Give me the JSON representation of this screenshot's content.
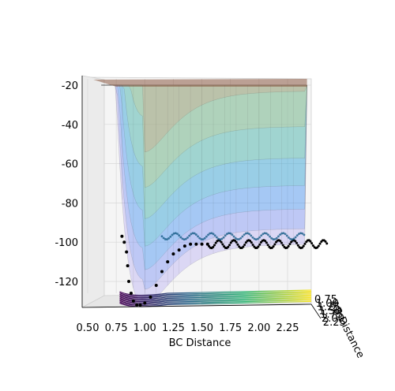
{
  "chart_data": {
    "type": "surface3d",
    "title": "",
    "xlabel": "BC Distance",
    "ylabel": "AB Distance",
    "zlabel": "",
    "x_ticks": [
      "0.50",
      "0.75",
      "1.00",
      "1.25",
      "1.50",
      "1.75",
      "2.00",
      "2.25"
    ],
    "y_ticks": [
      "0.75",
      "1.00",
      "1.25",
      "1.50",
      "1.75",
      "2.00",
      "2.25"
    ],
    "z_ticks": [
      "-20",
      "-40",
      "-60",
      "-80",
      "-100",
      "-120"
    ],
    "xlim": [
      0.5,
      2.4
    ],
    "zlim": [
      -135,
      -18
    ],
    "view": "side view along AB axis",
    "surface": {
      "colormap": "jet",
      "alpha": 0.35,
      "description_values": {
        "well_minimum_bc": 1.0,
        "well_minimum_energy": -132,
        "asymptote_energy": -101,
        "plateau_energy": -20
      }
    },
    "contour_colormap": "viridis",
    "trajectory": {
      "color": "#000000",
      "marker": "dot",
      "points_bc": [
        0.8,
        0.82,
        0.84,
        0.85,
        0.86,
        0.88,
        0.9,
        0.93,
        0.96,
        1.0,
        1.05,
        1.1,
        1.15,
        1.2,
        1.25,
        1.3,
        1.35,
        1.4,
        1.45,
        1.5,
        1.55
      ],
      "points_energy": [
        -97,
        -100,
        -105,
        -112,
        -120,
        -126,
        -130,
        -132,
        -132,
        -131,
        -128,
        -122,
        -115,
        -110,
        -106,
        -104,
        -102,
        -101,
        -101,
        -101,
        -101
      ],
      "trace_continues_to_bc": 2.6,
      "trace_energy": -101
    }
  }
}
